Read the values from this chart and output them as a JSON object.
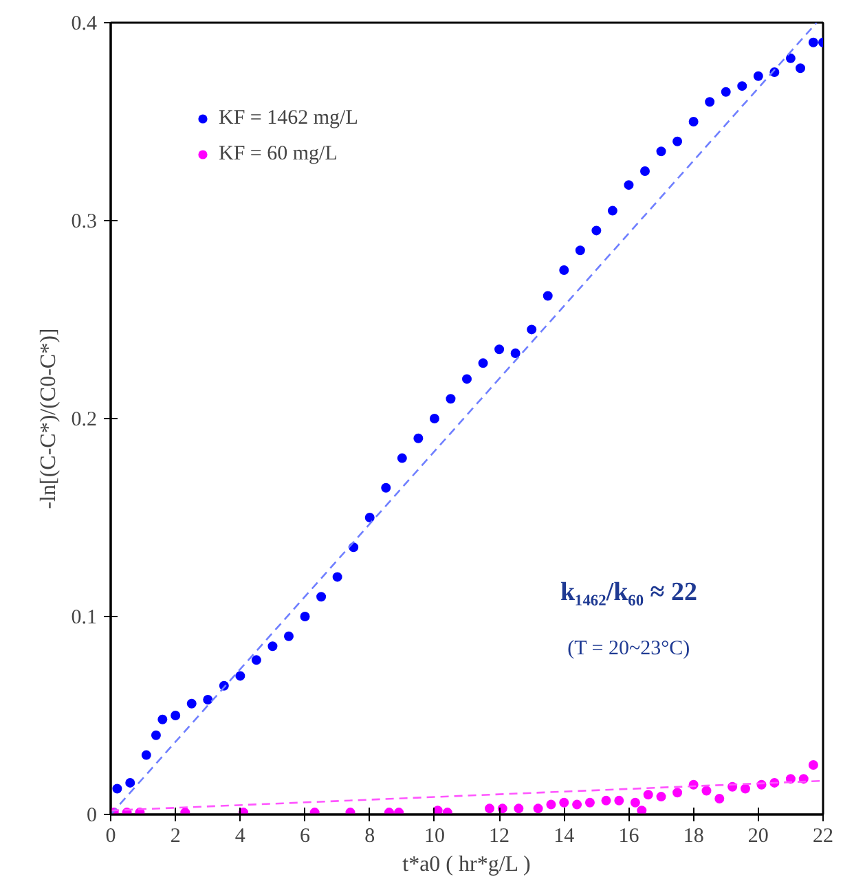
{
  "chart_data": {
    "type": "scatter",
    "xlabel": "t*a0 ( hr*g/L )",
    "ylabel": "-ln[(C-C*)/(C0-C*)]",
    "xlim": [
      0,
      22
    ],
    "ylim": [
      0,
      0.4
    ],
    "xticks": [
      0,
      2,
      4,
      6,
      8,
      10,
      12,
      14,
      16,
      18,
      20,
      22
    ],
    "yticks": [
      0,
      0.1,
      0.2,
      0.3,
      0.4
    ],
    "grid": false,
    "legend": "top left",
    "annotations": [
      "k₁₄₆₂/k₆₀ ≈ 22",
      "(T = 20~23°C)"
    ],
    "series": [
      {
        "name": "KF = 1462 mg/L",
        "color": "#0000ff",
        "marker": "circle",
        "x": [
          0.2,
          0.6,
          1.1,
          1.4,
          1.6,
          2.0,
          2.5,
          3.0,
          3.5,
          4.0,
          4.5,
          5.0,
          5.5,
          6.0,
          6.5,
          7.0,
          7.5,
          8.0,
          8.5,
          9.0,
          9.5,
          10.0,
          10.5,
          11.0,
          11.5,
          12.0,
          12.5,
          13.0,
          13.5,
          14.0,
          14.5,
          15.0,
          15.5,
          16.0,
          16.5,
          17.0,
          17.5,
          18.0,
          18.5,
          19.0,
          19.5,
          20.0,
          20.5,
          21.0,
          21.3,
          21.7,
          22.0
        ],
        "values": [
          0.013,
          0.016,
          0.03,
          0.04,
          0.048,
          0.05,
          0.056,
          0.058,
          0.065,
          0.07,
          0.078,
          0.085,
          0.09,
          0.1,
          0.11,
          0.12,
          0.135,
          0.15,
          0.165,
          0.18,
          0.19,
          0.2,
          0.21,
          0.22,
          0.228,
          0.235,
          0.233,
          0.245,
          0.262,
          0.275,
          0.285,
          0.295,
          0.305,
          0.318,
          0.325,
          0.335,
          0.34,
          0.35,
          0.36,
          0.365,
          0.368,
          0.373,
          0.375,
          0.382,
          0.377,
          0.39,
          0.39
        ]
      },
      {
        "name": "KF = 60 mg/L",
        "color": "#ff00ff",
        "marker": "circle",
        "x": [
          0.1,
          0.5,
          0.9,
          2.3,
          4.1,
          6.3,
          7.4,
          8.6,
          8.9,
          10.1,
          10.4,
          11.7,
          12.1,
          12.6,
          13.2,
          13.6,
          14.0,
          14.4,
          14.8,
          15.3,
          15.7,
          16.2,
          16.4,
          16.6,
          17.0,
          17.5,
          18.0,
          18.4,
          18.8,
          19.2,
          19.6,
          20.1,
          20.5,
          21.0,
          21.4,
          21.7
        ],
        "values": [
          0.001,
          0.001,
          0.001,
          0.001,
          0.001,
          0.001,
          0.001,
          0.001,
          0.001,
          0.002,
          0.001,
          0.003,
          0.003,
          0.003,
          0.003,
          0.005,
          0.006,
          0.005,
          0.006,
          0.007,
          0.007,
          0.006,
          0.002,
          0.01,
          0.009,
          0.011,
          0.015,
          0.012,
          0.008,
          0.014,
          0.013,
          0.015,
          0.016,
          0.018,
          0.018,
          0.025
        ]
      },
      {
        "type": "line",
        "line_style": "dashed",
        "color": "#6f7fff",
        "x": [
          0,
          21.8
        ],
        "values": [
          0,
          0.4
        ]
      },
      {
        "type": "line",
        "line_style": "dashed",
        "color": "#ff55ff",
        "x": [
          0,
          22
        ],
        "values": [
          0.002,
          0.017
        ]
      }
    ]
  }
}
